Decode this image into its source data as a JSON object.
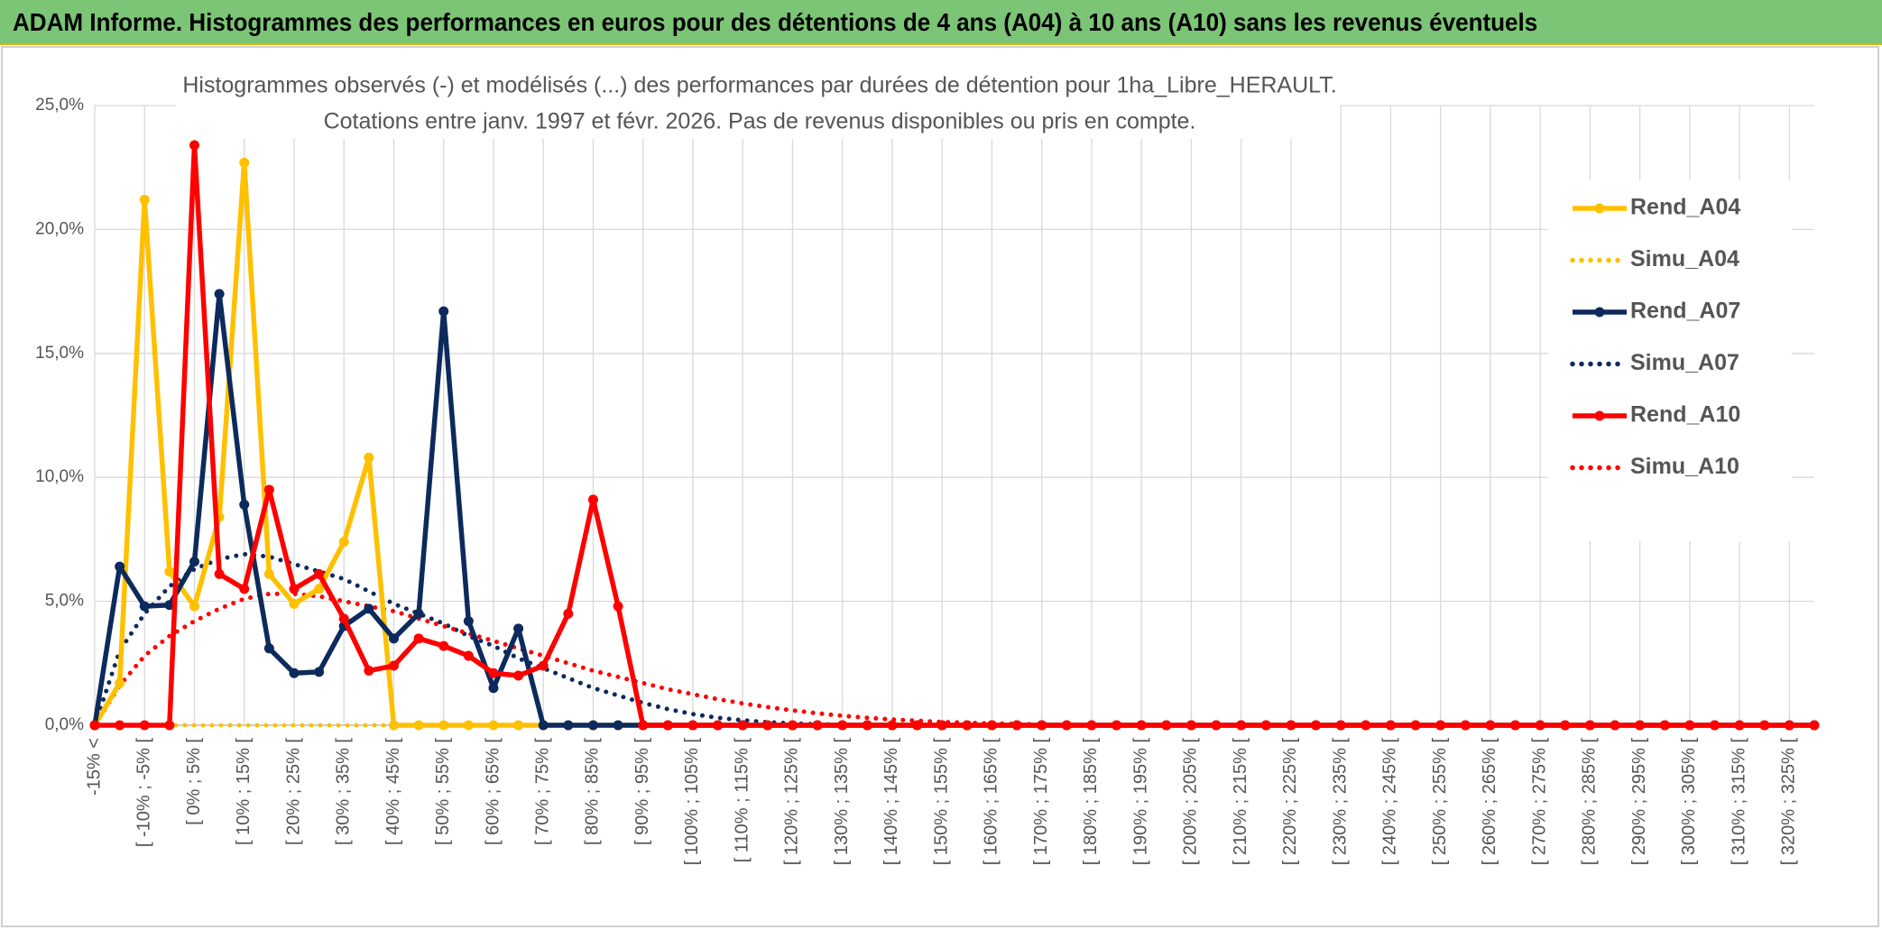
{
  "header": {
    "title": "ADAM Informe. Histogrammes des performances en euros pour des détentions de 4 ans (A04) à 10 ans (A10) sans les revenus éventuels"
  },
  "chart_data": {
    "type": "line",
    "title": "Histogrammes observés (-) et modélisés (...) des performances par durées de détention pour 1ha_Libre_HERAULT.",
    "subtitle": "Cotations entre janv. 1997 et févr. 2026. Pas de revenus disponibles ou pris en compte.",
    "categories": [
      "-15% <",
      null,
      "[ -10% ; -5% [",
      null,
      "[ 0% ; 5% [",
      null,
      "[ 10% ; 15% [",
      null,
      "[ 20% ; 25% [",
      null,
      "[ 30% ; 35% [",
      null,
      "[ 40% ; 45% [",
      null,
      "[ 50% ; 55% [",
      null,
      "[ 60% ; 65% [",
      null,
      "[ 70% ; 75% [",
      null,
      "[ 80% ; 85% [",
      null,
      "[ 90% ; 95% [",
      null,
      "[ 100% ; 105% [",
      null,
      "[ 110% ; 115% [",
      null,
      "[ 120% ; 125% [",
      null,
      "[ 130% ; 135% [",
      null,
      "[ 140% ; 145% [",
      null,
      "[ 150% ; 155% [",
      null,
      "[ 160% ; 165% [",
      null,
      "[ 170% ; 175% [",
      null,
      "[ 180% ; 185% [",
      null,
      "[ 190% ; 195% [",
      null,
      "[ 200% ; 205% [",
      null,
      "[ 210% ; 215% [",
      null,
      "[ 220% ; 225% [",
      null,
      "[ 230% ; 235% [",
      null,
      "[ 240% ; 245% [",
      null,
      "[ 250% ; 255% [",
      null,
      "[ 260% ; 265% [",
      null,
      "[ 270% ; 275% [",
      null,
      "[ 280% ; 285% [",
      null,
      "[ 290% ; 295% [",
      null,
      "[ 300% ; 305% [",
      null,
      "[ 310% ; 315% [",
      null,
      "[ 320% ; 325% [",
      null
    ],
    "series": [
      {
        "name": "Rend_A04",
        "color": "#ffc000",
        "style": "solid",
        "marker": true,
        "values": [
          0,
          1.7,
          21.2,
          6.2,
          4.8,
          8.4,
          22.7,
          6.1,
          4.9,
          5.5,
          7.4,
          10.8,
          0,
          0,
          0,
          0,
          0,
          0,
          0,
          0,
          0,
          0,
          0,
          0,
          0,
          0,
          0,
          0,
          0,
          0,
          0,
          0,
          0,
          0,
          0,
          0,
          0,
          0,
          0,
          0,
          0,
          0,
          0,
          0,
          0,
          0,
          0,
          0,
          0,
          0,
          0,
          0,
          0,
          0,
          0,
          0,
          0,
          0,
          0,
          0,
          0,
          0,
          0,
          0,
          0,
          0,
          0,
          0,
          0,
          0
        ]
      },
      {
        "name": "Simu_A04",
        "color": "#ffc000",
        "style": "dotted",
        "marker": false,
        "values": [
          0,
          0,
          0,
          0,
          0,
          0,
          0,
          0,
          0,
          0,
          0,
          0,
          0,
          0,
          0,
          0,
          0,
          0,
          0,
          0,
          0,
          0,
          0,
          0,
          0,
          0,
          0,
          0,
          0,
          0,
          0,
          0,
          0,
          0,
          0,
          0,
          0,
          0,
          0,
          0,
          0,
          0,
          0,
          0,
          0,
          0,
          0,
          0,
          0,
          0,
          0,
          0,
          0,
          0,
          0,
          0,
          0,
          0,
          0,
          0,
          0,
          0,
          0,
          0,
          0,
          0,
          0,
          0,
          0,
          0
        ]
      },
      {
        "name": "Rend_A07",
        "color": "#0d2a5c",
        "style": "solid",
        "marker": true,
        "values": [
          0,
          6.4,
          4.8,
          4.85,
          6.6,
          17.4,
          8.9,
          3.1,
          2.1,
          2.15,
          4.0,
          4.7,
          3.5,
          4.5,
          16.7,
          4.2,
          1.5,
          3.9,
          0,
          0,
          0,
          0,
          0,
          0,
          0,
          0,
          0,
          0,
          0,
          0,
          0,
          0,
          0,
          0,
          0,
          0,
          0,
          0,
          0,
          0,
          0,
          0,
          0,
          0,
          0,
          0,
          0,
          0,
          0,
          0,
          0,
          0,
          0,
          0,
          0,
          0,
          0,
          0,
          0,
          0,
          0,
          0,
          0,
          0,
          0,
          0,
          0,
          0,
          0,
          0
        ]
      },
      {
        "name": "Simu_A07",
        "color": "#0d2a5c",
        "style": "dotted",
        "marker": false,
        "values": [
          0,
          3.0,
          4.5,
          5.6,
          6.3,
          6.7,
          6.9,
          6.8,
          6.5,
          6.2,
          5.9,
          5.4,
          4.9,
          4.5,
          4.1,
          3.6,
          3.2,
          2.7,
          2.3,
          1.9,
          1.5,
          1.2,
          0.9,
          0.65,
          0.45,
          0.3,
          0.2,
          0.12,
          0.07,
          0.04,
          0.02,
          0,
          0,
          0,
          0,
          0,
          0,
          0,
          0,
          0,
          0,
          0,
          0,
          0,
          0,
          0,
          0,
          0,
          0,
          0,
          0,
          0,
          0,
          0,
          0,
          0,
          0,
          0,
          0,
          0,
          0,
          0,
          0,
          0,
          0,
          0,
          0,
          0,
          0,
          0
        ]
      },
      {
        "name": "Rend_A10",
        "color": "#ff0000",
        "style": "solid",
        "marker": true,
        "values": [
          0,
          0,
          0,
          0,
          23.4,
          6.1,
          5.5,
          9.5,
          5.5,
          6.1,
          4.3,
          2.2,
          2.4,
          3.5,
          3.2,
          2.8,
          2.1,
          2.0,
          2.4,
          4.5,
          9.1,
          4.8,
          0,
          0,
          0,
          0,
          0,
          0,
          0,
          0,
          0,
          0,
          0,
          0,
          0,
          0,
          0,
          0,
          0,
          0,
          0,
          0,
          0,
          0,
          0,
          0,
          0,
          0,
          0,
          0,
          0,
          0,
          0,
          0,
          0,
          0,
          0,
          0,
          0,
          0,
          0,
          0,
          0,
          0,
          0,
          0,
          0,
          0,
          0,
          0
        ]
      },
      {
        "name": "Simu_A10",
        "color": "#ff0000",
        "style": "dotted",
        "marker": false,
        "values": [
          0,
          1.6,
          2.8,
          3.6,
          4.2,
          4.7,
          5.1,
          5.3,
          5.3,
          5.2,
          5.0,
          4.8,
          4.6,
          4.3,
          4.0,
          3.7,
          3.4,
          3.1,
          2.8,
          2.5,
          2.2,
          1.95,
          1.7,
          1.45,
          1.25,
          1.05,
          0.88,
          0.73,
          0.6,
          0.48,
          0.38,
          0.3,
          0.23,
          0.18,
          0.13,
          0.1,
          0.07,
          0.05,
          0.03,
          0.02,
          0,
          0,
          0,
          0,
          0,
          0,
          0,
          0,
          0,
          0,
          0,
          0,
          0,
          0,
          0,
          0,
          0,
          0,
          0,
          0,
          0,
          0,
          0,
          0,
          0,
          0,
          0,
          0,
          0,
          0
        ]
      }
    ],
    "ylim": [
      0,
      25
    ],
    "yticks": [
      {
        "value": 0,
        "label": "0,0%"
      },
      {
        "value": 5,
        "label": "5,0%"
      },
      {
        "value": 10,
        "label": "10,0%"
      },
      {
        "value": 15,
        "label": "15,0%"
      },
      {
        "value": 20,
        "label": "20,0%"
      },
      {
        "value": 25,
        "label": "25,0%"
      }
    ],
    "grid": true,
    "legend": "right"
  }
}
